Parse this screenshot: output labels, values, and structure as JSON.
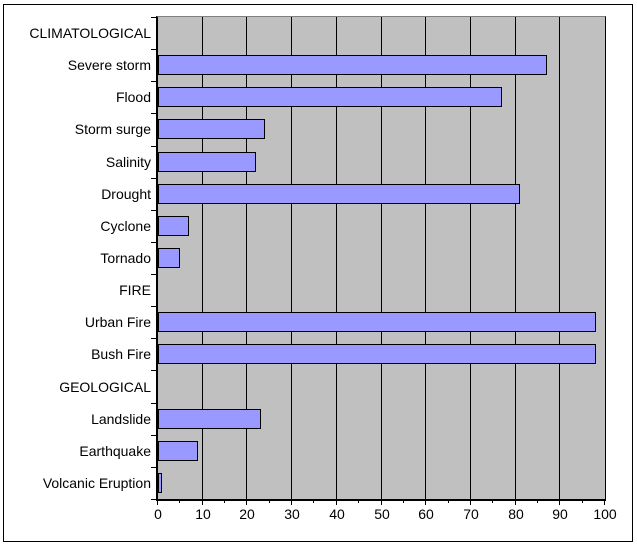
{
  "frame": {
    "background": "#ffffff",
    "border_color": "#000000"
  },
  "chart_data": {
    "type": "bar",
    "orientation": "horizontal",
    "title": "",
    "xlabel": "",
    "ylabel": "",
    "categories": [
      "CLIMATOLOGICAL",
      "Severe storm",
      "Flood",
      "Storm surge",
      "Salinity",
      "Drought",
      "Cyclone",
      "Tornado",
      "FIRE",
      "Urban Fire",
      "Bush Fire",
      "GEOLOGICAL",
      "Landslide",
      "Earthquake",
      "Volcanic Eruption"
    ],
    "values": [
      null,
      87,
      77,
      24,
      22,
      81,
      7,
      5,
      null,
      98,
      98,
      null,
      23,
      9,
      1
    ],
    "section_headers": [
      "CLIMATOLOGICAL",
      "FIRE",
      "GEOLOGICAL"
    ],
    "xlim": [
      0,
      100
    ],
    "x_ticks": [
      0,
      10,
      20,
      30,
      40,
      50,
      60,
      70,
      80,
      90,
      100
    ],
    "minor_tick_step": 5,
    "grid": "vertical-major",
    "legend": false,
    "colors": {
      "bar_fill": "#9999ff",
      "bar_border": "#000000",
      "plot_background": "#c0c0c0",
      "gridline": "#000000",
      "axis": "#000000",
      "text": "#000000",
      "plot_border_top": "#808080"
    }
  }
}
